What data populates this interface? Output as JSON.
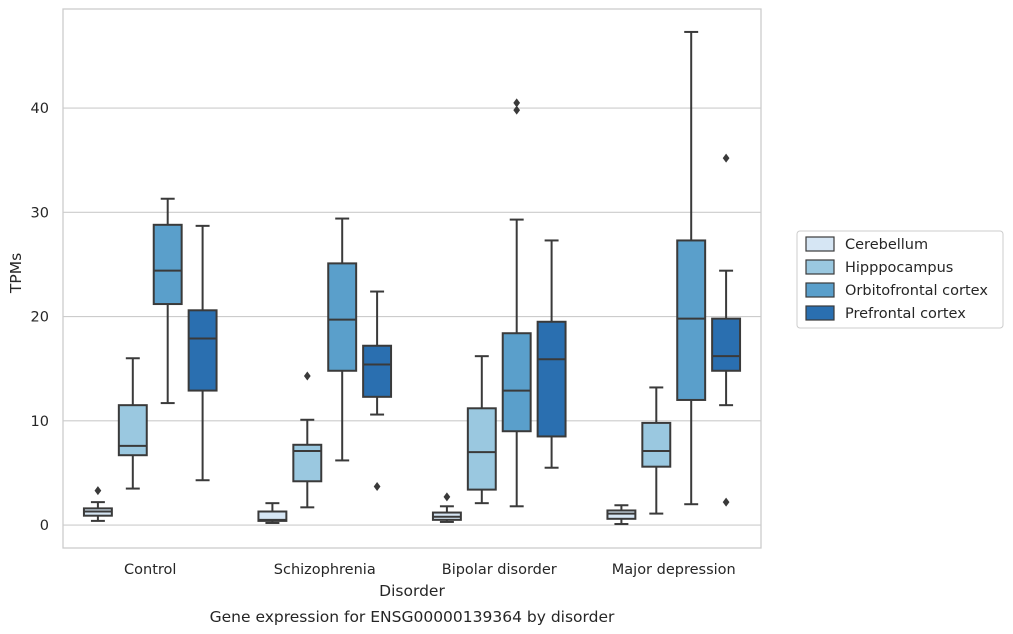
{
  "chart_data": {
    "type": "box",
    "title": "",
    "caption": "Gene expression for ENSG00000139364 by disorder",
    "xlabel": "Disorder",
    "ylabel": "TPMs",
    "ylim": [
      -2.2,
      49.5
    ],
    "yticks": [
      0,
      10,
      20,
      30,
      40
    ],
    "grid": "horizontal",
    "legend_position": "right",
    "categories": [
      "Control",
      "Schizophrenia",
      "Bipolar disorder",
      "Major depression"
    ],
    "series": [
      {
        "name": "Cerebellum",
        "color": "#d6e6f4",
        "boxes": [
          {
            "whisker_low": 0.4,
            "q1": 0.9,
            "median": 1.3,
            "q3": 1.6,
            "whisker_high": 2.2,
            "outliers": [
              3.3
            ]
          },
          {
            "whisker_low": 0.2,
            "q1": 0.4,
            "median": 0.5,
            "q3": 1.3,
            "whisker_high": 2.1,
            "outliers": []
          },
          {
            "whisker_low": 0.3,
            "q1": 0.5,
            "median": 0.8,
            "q3": 1.2,
            "whisker_high": 1.8,
            "outliers": [
              2.7
            ]
          },
          {
            "whisker_low": 0.1,
            "q1": 0.6,
            "median": 1.1,
            "q3": 1.4,
            "whisker_high": 1.9,
            "outliers": []
          }
        ]
      },
      {
        "name": "Hipppocampus",
        "color": "#9ac8e0",
        "boxes": [
          {
            "whisker_low": 3.5,
            "q1": 6.7,
            "median": 7.6,
            "q3": 11.5,
            "whisker_high": 16.0,
            "outliers": []
          },
          {
            "whisker_low": 1.7,
            "q1": 4.2,
            "median": 7.1,
            "q3": 7.7,
            "whisker_high": 10.1,
            "outliers": [
              14.3
            ]
          },
          {
            "whisker_low": 2.1,
            "q1": 3.4,
            "median": 7.0,
            "q3": 11.2,
            "whisker_high": 16.2,
            "outliers": []
          },
          {
            "whisker_low": 1.1,
            "q1": 5.6,
            "median": 7.1,
            "q3": 9.8,
            "whisker_high": 13.2,
            "outliers": []
          }
        ]
      },
      {
        "name": "Orbitofrontal cortex",
        "color": "#5a9fcb",
        "boxes": [
          {
            "whisker_low": 11.7,
            "q1": 21.2,
            "median": 24.4,
            "q3": 28.8,
            "whisker_high": 31.3,
            "outliers": []
          },
          {
            "whisker_low": 6.2,
            "q1": 14.8,
            "median": 19.7,
            "q3": 25.1,
            "whisker_high": 29.4,
            "outliers": []
          },
          {
            "whisker_low": 1.8,
            "q1": 9.0,
            "median": 12.9,
            "q3": 18.4,
            "whisker_high": 29.3,
            "outliers": [
              39.8,
              40.5
            ]
          },
          {
            "whisker_low": 2.0,
            "q1": 12.0,
            "median": 19.8,
            "q3": 27.3,
            "whisker_high": 47.3,
            "outliers": []
          }
        ]
      },
      {
        "name": "Prefrontal cortex",
        "color": "#2a6fb0",
        "boxes": [
          {
            "whisker_low": 4.3,
            "q1": 12.9,
            "median": 17.9,
            "q3": 20.6,
            "whisker_high": 28.7,
            "outliers": []
          },
          {
            "whisker_low": 10.6,
            "q1": 12.3,
            "median": 15.4,
            "q3": 17.2,
            "whisker_high": 22.4,
            "outliers": [
              3.7
            ]
          },
          {
            "whisker_low": 5.5,
            "q1": 8.5,
            "median": 15.9,
            "q3": 19.5,
            "whisker_high": 27.3,
            "outliers": []
          },
          {
            "whisker_low": 11.5,
            "q1": 14.8,
            "median": 16.2,
            "q3": 19.8,
            "whisker_high": 24.4,
            "outliers": [
              2.2,
              35.2
            ]
          }
        ]
      }
    ]
  }
}
